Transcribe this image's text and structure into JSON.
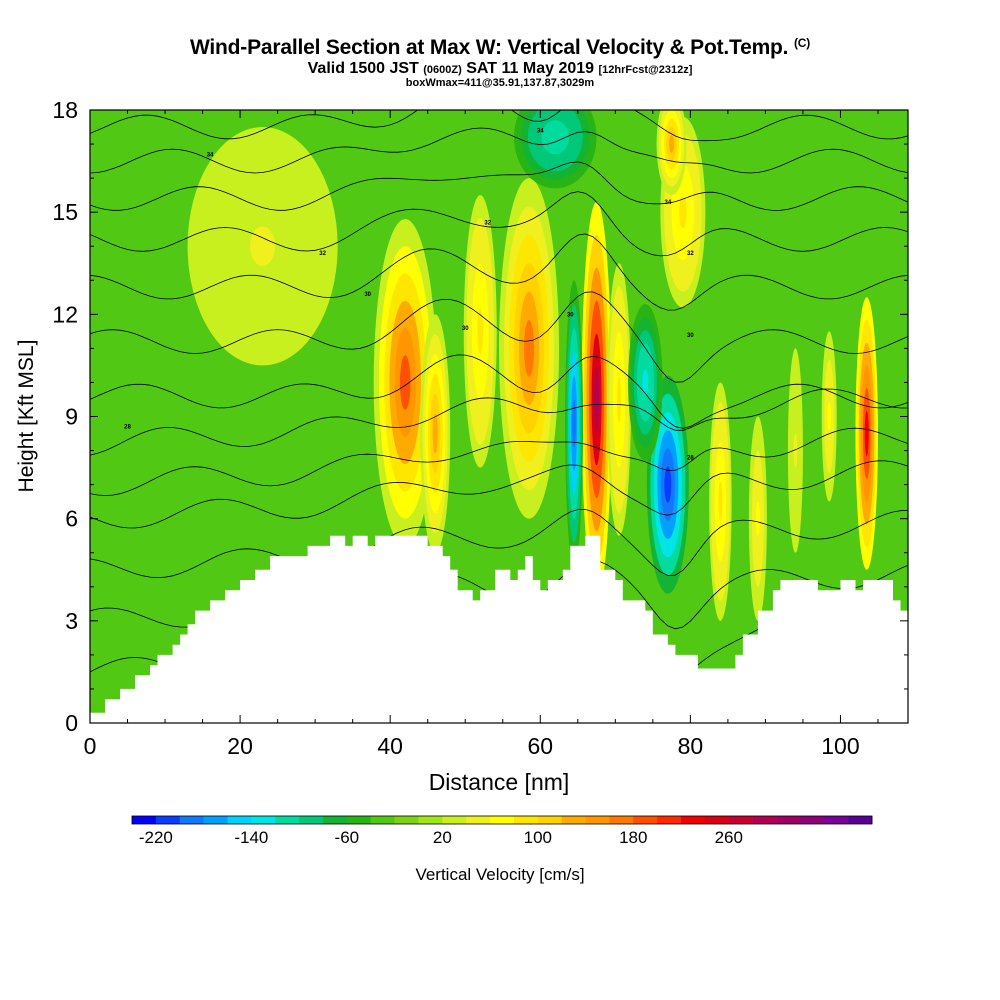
{
  "header": {
    "title_main": "Wind-Parallel Section at Max W: Vertical Velocity & Pot.Temp.",
    "title_mark": "(C)",
    "subtitle_prefix": "Valid 1500 JST",
    "subtitle_z": "(0600Z)",
    "subtitle_date": "SAT 11 May 2019",
    "subtitle_fcst": "[12hrFcst@2312z]",
    "subtitle2": "boxWmax=411@35.91,137.87,3029m"
  },
  "chart_data": {
    "type": "heatmap",
    "xlabel": "Distance [nm]",
    "ylabel": "Height [Kft MSL]",
    "xlim": [
      0,
      109
    ],
    "ylim": [
      0,
      18
    ],
    "x_ticks": [
      "0",
      "20",
      "40",
      "60",
      "80",
      "100"
    ],
    "y_ticks": [
      "0",
      "3",
      "6",
      "9",
      "12",
      "15",
      "18"
    ],
    "colorbar": {
      "label": "Vertical Velocity [cm/s]",
      "tick_labels": [
        "-220",
        "-140",
        "-60",
        "20",
        "100",
        "180",
        "260"
      ],
      "colors": [
        "#0000ff",
        "#0a3cff",
        "#1478ff",
        "#00a0ff",
        "#00d2ff",
        "#00e6e6",
        "#00dca0",
        "#00c878",
        "#14b432",
        "#28b414",
        "#50c814",
        "#7dd214",
        "#a0e614",
        "#c8f01e",
        "#f0f01e",
        "#ffff00",
        "#ffe600",
        "#ffd200",
        "#ffaa00",
        "#ff9600",
        "#ff7800",
        "#ff5000",
        "#ff2800",
        "#f00000",
        "#dc0014",
        "#c80032",
        "#b40050",
        "#a00064",
        "#8c0078",
        "#780096",
        "#5a0096"
      ]
    },
    "theta_labels": [
      {
        "x": 5,
        "y": 8.7,
        "text": "28"
      },
      {
        "x": 31,
        "y": 13.8,
        "text": "32"
      },
      {
        "x": 16,
        "y": 16.7,
        "text": "34"
      },
      {
        "x": 37,
        "y": 12.6,
        "text": "30"
      },
      {
        "x": 50,
        "y": 11.6,
        "text": "30"
      },
      {
        "x": 53,
        "y": 14.7,
        "text": "32"
      },
      {
        "x": 60,
        "y": 17.4,
        "text": "34"
      },
      {
        "x": 64,
        "y": 12.0,
        "text": "30"
      },
      {
        "x": 77,
        "y": 15.3,
        "text": "34"
      },
      {
        "x": 80,
        "y": 13.8,
        "text": "32"
      },
      {
        "x": 80,
        "y": 11.4,
        "text": "30"
      },
      {
        "x": 80,
        "y": 7.8,
        "text": "28"
      }
    ],
    "terrain": [
      [
        0,
        0.3
      ],
      [
        2,
        0.3
      ],
      [
        2,
        0.7
      ],
      [
        4,
        0.7
      ],
      [
        4,
        1.0
      ],
      [
        6,
        1.0
      ],
      [
        6,
        1.4
      ],
      [
        8,
        1.4
      ],
      [
        8,
        1.7
      ],
      [
        9,
        1.7
      ],
      [
        9,
        2.0
      ],
      [
        11,
        2.0
      ],
      [
        11,
        2.3
      ],
      [
        12,
        2.3
      ],
      [
        12,
        2.6
      ],
      [
        13,
        2.6
      ],
      [
        13,
        2.9
      ],
      [
        14,
        2.9
      ],
      [
        14,
        3.3
      ],
      [
        16,
        3.3
      ],
      [
        16,
        3.6
      ],
      [
        18,
        3.6
      ],
      [
        18,
        3.9
      ],
      [
        20,
        3.9
      ],
      [
        20,
        4.2
      ],
      [
        22,
        4.2
      ],
      [
        22,
        4.5
      ],
      [
        24,
        4.5
      ],
      [
        24,
        4.9
      ],
      [
        29,
        4.9
      ],
      [
        29,
        5.2
      ],
      [
        32,
        5.2
      ],
      [
        32,
        5.5
      ],
      [
        34,
        5.5
      ],
      [
        34,
        5.2
      ],
      [
        35,
        5.2
      ],
      [
        35,
        5.5
      ],
      [
        37,
        5.5
      ],
      [
        37,
        5.2
      ],
      [
        38,
        5.2
      ],
      [
        38,
        5.5
      ],
      [
        45,
        5.5
      ],
      [
        45,
        5.2
      ],
      [
        47,
        5.2
      ],
      [
        47,
        4.9
      ],
      [
        48,
        4.9
      ],
      [
        48,
        4.5
      ],
      [
        49,
        4.5
      ],
      [
        49,
        3.9
      ],
      [
        51,
        3.9
      ],
      [
        51,
        3.6
      ],
      [
        52,
        3.6
      ],
      [
        52,
        3.9
      ],
      [
        54,
        3.9
      ],
      [
        54,
        4.5
      ],
      [
        56,
        4.5
      ],
      [
        56,
        4.2
      ],
      [
        57,
        4.2
      ],
      [
        57,
        4.5
      ],
      [
        58,
        4.5
      ],
      [
        58,
        4.9
      ],
      [
        59,
        4.9
      ],
      [
        59,
        4.2
      ],
      [
        60,
        4.2
      ],
      [
        60,
        3.9
      ],
      [
        61,
        3.9
      ],
      [
        61,
        4.2
      ],
      [
        63,
        4.2
      ],
      [
        63,
        4.5
      ],
      [
        64,
        4.5
      ],
      [
        64,
        5.2
      ],
      [
        66,
        5.2
      ],
      [
        66,
        5.5
      ],
      [
        68,
        5.5
      ],
      [
        68,
        4.5
      ],
      [
        70,
        4.5
      ],
      [
        70,
        4.2
      ],
      [
        71,
        4.2
      ],
      [
        71,
        3.6
      ],
      [
        74,
        3.6
      ],
      [
        74,
        3.3
      ],
      [
        75,
        3.3
      ],
      [
        75,
        2.6
      ],
      [
        77,
        2.6
      ],
      [
        77,
        2.3
      ],
      [
        78,
        2.3
      ],
      [
        78,
        2.0
      ],
      [
        81,
        2.0
      ],
      [
        81,
        1.6
      ],
      [
        86,
        1.6
      ],
      [
        86,
        2.0
      ],
      [
        87,
        2.0
      ],
      [
        87,
        2.6
      ],
      [
        89,
        2.6
      ],
      [
        89,
        3.3
      ],
      [
        91,
        3.3
      ],
      [
        91,
        3.9
      ],
      [
        92,
        3.9
      ],
      [
        92,
        4.2
      ],
      [
        97,
        4.2
      ],
      [
        97,
        3.9
      ],
      [
        100,
        3.9
      ],
      [
        100,
        4.2
      ],
      [
        102,
        4.2
      ],
      [
        102,
        3.9
      ],
      [
        103,
        3.9
      ],
      [
        103,
        4.2
      ],
      [
        107,
        4.2
      ],
      [
        107,
        3.6
      ],
      [
        108,
        3.6
      ],
      [
        108,
        3.3
      ],
      [
        109,
        3.3
      ]
    ],
    "base_field": "#50c814",
    "blobs": [
      {
        "x": 42,
        "y": 10.0,
        "rx": 4.2,
        "ry": 4.8,
        "peak": 190,
        "base": 30
      },
      {
        "x": 46,
        "y": 8.5,
        "rx": 2.0,
        "ry": 3.5,
        "peak": 120,
        "base": 30
      },
      {
        "x": 58.5,
        "y": 11.0,
        "rx": 4.0,
        "ry": 5.0,
        "peak": 160,
        "base": 30
      },
      {
        "x": 52,
        "y": 11.5,
        "rx": 2.2,
        "ry": 4.0,
        "peak": 90,
        "base": 30
      },
      {
        "x": 67.5,
        "y": 9.5,
        "rx": 2.0,
        "ry": 5.8,
        "peak": 290,
        "base": 60
      },
      {
        "x": 70.5,
        "y": 9.5,
        "rx": 1.6,
        "ry": 4.0,
        "peak": 80,
        "base": 30
      },
      {
        "x": 64.5,
        "y": 8.8,
        "rx": 1.2,
        "ry": 4.2,
        "peak": -200,
        "base": -60
      },
      {
        "x": 77,
        "y": 7.0,
        "rx": 2.8,
        "ry": 3.2,
        "peak": -215,
        "base": -80
      },
      {
        "x": 74,
        "y": 10.0,
        "rx": 2.3,
        "ry": 2.3,
        "peak": -130,
        "base": -60
      },
      {
        "x": 79,
        "y": 15.0,
        "rx": 3.0,
        "ry": 2.8,
        "peak": 80,
        "base": 30
      },
      {
        "x": 77.5,
        "y": 17.0,
        "rx": 2.0,
        "ry": 1.5,
        "peak": 120,
        "base": 30
      },
      {
        "x": 62,
        "y": 17.2,
        "rx": 5.5,
        "ry": 1.5,
        "peak": -120,
        "base": -60
      },
      {
        "x": 84,
        "y": 6.5,
        "rx": 1.5,
        "ry": 3.5,
        "peak": 80,
        "base": 30
      },
      {
        "x": 89,
        "y": 6.0,
        "rx": 1.2,
        "ry": 3.0,
        "peak": 60,
        "base": 30
      },
      {
        "x": 103.5,
        "y": 8.5,
        "rx": 1.5,
        "ry": 4.0,
        "peak": 220,
        "base": 60
      },
      {
        "x": 98.5,
        "y": 9.0,
        "rx": 1.0,
        "ry": 2.5,
        "peak": 60,
        "base": 30
      },
      {
        "x": 94,
        "y": 8.0,
        "rx": 1.0,
        "ry": 3.0,
        "peak": 40,
        "base": 20
      },
      {
        "x": 23,
        "y": 14.0,
        "rx": 10.0,
        "ry": 3.5,
        "peak": 40,
        "base": 20
      }
    ]
  }
}
